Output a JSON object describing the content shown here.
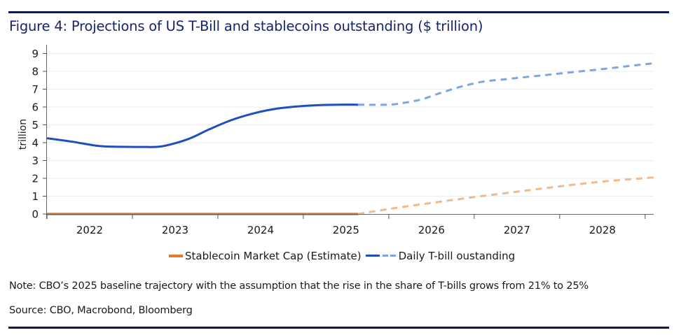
{
  "figure": {
    "title": "Figure 4: Projections of US T-Bill and stablecoins outstanding ($ trillion)",
    "note": "Note: CBO’s 2025 baseline trajectory with the assumption that the rise in the share of T-bills grows from 21% to 25%",
    "source": "Source: CBO, Macrobond, Bloomberg",
    "rule_color": "#121a4d",
    "title_color": "#16246b"
  },
  "legend": {
    "items": [
      {
        "label": "Stablecoin Market Cap (Estimate)",
        "color": "#e07b2e"
      },
      {
        "label": "Daily T-bill oustanding",
        "color": "#1f4fbf",
        "projection_color": "#7fa6e3"
      }
    ]
  },
  "chart_data": {
    "type": "line",
    "title": "Figure 4: Projections of US T-Bill and stablecoins outstanding ($ trillion)",
    "xlabel": "",
    "ylabel": "trillion",
    "xlim": [
      2022.0,
      2029.1
    ],
    "ylim": [
      0,
      9
    ],
    "yticks": [
      0,
      1,
      2,
      3,
      4,
      5,
      6,
      7,
      8,
      9
    ],
    "xtick_boundaries": [
      2022,
      2023,
      2024,
      2025,
      2026,
      2027,
      2028,
      2029
    ],
    "xtick_labels": [
      "2022",
      "2023",
      "2024",
      "2025",
      "2026",
      "2027",
      "2028"
    ],
    "grid": true,
    "legend_position": "bottom",
    "series": [
      {
        "name": "Daily T-bill oustanding",
        "style": "solid",
        "color": "#1f4fbf",
        "x": [
          2022.0,
          2022.3,
          2022.6,
          2022.85,
          2023.1,
          2023.35,
          2023.65,
          2023.9,
          2024.15,
          2024.4,
          2024.65,
          2024.9,
          2025.15,
          2025.4,
          2025.64
        ],
        "y": [
          4.25,
          4.05,
          3.82,
          3.77,
          3.76,
          3.8,
          4.2,
          4.75,
          5.25,
          5.62,
          5.88,
          6.02,
          6.1,
          6.13,
          6.13
        ]
      },
      {
        "name": "Daily T-bill oustanding (projection)",
        "style": "dashed",
        "color": "#7fa6e3",
        "x": [
          2025.64,
          2026.0,
          2026.2,
          2026.4,
          2026.6,
          2026.85,
          2027.1,
          2027.35,
          2027.6,
          2027.85,
          2028.1,
          2028.35,
          2028.6,
          2028.85,
          2029.1
        ],
        "y": [
          6.13,
          6.13,
          6.25,
          6.45,
          6.78,
          7.15,
          7.42,
          7.55,
          7.68,
          7.8,
          7.93,
          8.05,
          8.18,
          8.32,
          8.45
        ]
      },
      {
        "name": "Stablecoin Market Cap (Estimate)",
        "style": "solid",
        "color": "#e07b2e",
        "x": [
          2022.0,
          2023.0,
          2024.0,
          2025.0,
          2025.64
        ],
        "y": [
          0.0,
          0.0,
          0.0,
          0.0,
          0.0
        ]
      },
      {
        "name": "Stablecoin Market Cap (projection)",
        "style": "dashed",
        "color": "#f2b98a",
        "x": [
          2025.64,
          2026.0,
          2026.5,
          2027.0,
          2027.5,
          2028.0,
          2028.5,
          2029.1
        ],
        "y": [
          0.0,
          0.28,
          0.62,
          0.95,
          1.25,
          1.55,
          1.82,
          2.05
        ]
      }
    ]
  }
}
